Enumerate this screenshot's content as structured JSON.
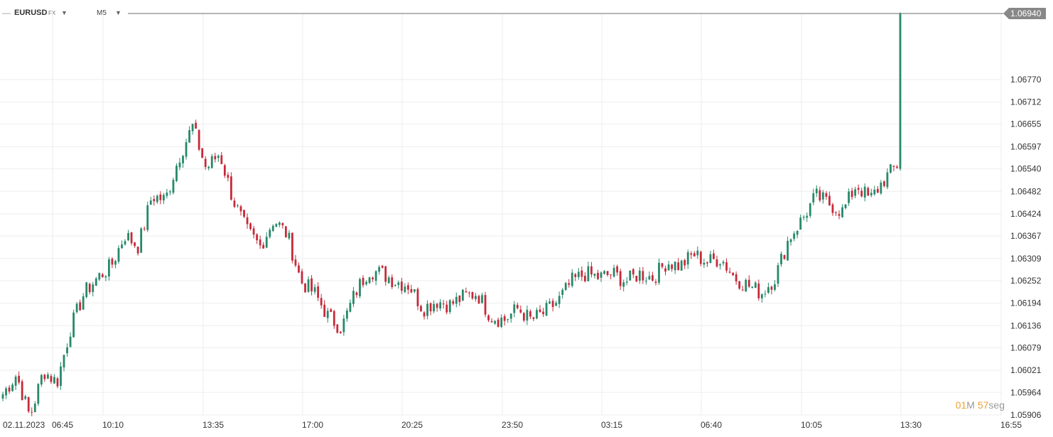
{
  "toolbar": {
    "dash": "—",
    "symbol": "EURUSD",
    "market": "FX",
    "symbol_caret": "▼",
    "timeframe": "M5",
    "timeframe_caret": "▼"
  },
  "timer": {
    "minutes": "01",
    "minutes_unit": "M",
    "seconds": "57",
    "seconds_unit": "seg"
  },
  "colors": {
    "up": "#26896a",
    "down": "#c62a3a",
    "grid": "#eeeeee",
    "price_tag": "#888888"
  },
  "chart_data": {
    "type": "candlestick",
    "symbol": "EURUSD",
    "timeframe": "M5",
    "ylim": [
      1.05906,
      1.0694
    ],
    "yticks": [
      "1.06770",
      "1.06712",
      "1.06655",
      "1.06597",
      "1.06540",
      "1.06482",
      "1.06424",
      "1.06367",
      "1.06309",
      "1.06252",
      "1.06194",
      "1.06136",
      "1.06079",
      "1.06021",
      "1.05964",
      "1.05906"
    ],
    "xticks": [
      "02.11.2023",
      "06:45",
      "10:10",
      "13:35",
      "17:00",
      "20:25",
      "23:50",
      "03:15",
      "06:40",
      "10:05",
      "13:30",
      "16:55"
    ],
    "last_price": "1.06940",
    "grid": true,
    "series": [
      {
        "time": "06:45",
        "close": 1.0596
      },
      {
        "time": "08:00",
        "close": 1.0601
      },
      {
        "time": "08:45",
        "close": 1.059
      },
      {
        "time": "09:30",
        "close": 1.0602
      },
      {
        "time": "10:00",
        "close": 1.0599
      },
      {
        "time": "10:10",
        "close": 1.0613
      },
      {
        "time": "10:40",
        "close": 1.0622
      },
      {
        "time": "11:20",
        "close": 1.0626
      },
      {
        "time": "11:50",
        "close": 1.0629
      },
      {
        "time": "12:20",
        "close": 1.0637
      },
      {
        "time": "12:40",
        "close": 1.0634
      },
      {
        "time": "13:00",
        "close": 1.0647
      },
      {
        "time": "13:15",
        "close": 1.0646
      },
      {
        "time": "13:35",
        "close": 1.0657
      },
      {
        "time": "14:00",
        "close": 1.0665
      },
      {
        "time": "14:20",
        "close": 1.0654
      },
      {
        "time": "14:45",
        "close": 1.0658
      },
      {
        "time": "15:00",
        "close": 1.0646
      },
      {
        "time": "15:25",
        "close": 1.0638
      },
      {
        "time": "15:45",
        "close": 1.0634
      },
      {
        "time": "16:05",
        "close": 1.0641
      },
      {
        "time": "16:20",
        "close": 1.0637
      },
      {
        "time": "16:40",
        "close": 1.0625
      },
      {
        "time": "17:00",
        "close": 1.0622
      },
      {
        "time": "17:20",
        "close": 1.0616
      },
      {
        "time": "17:40",
        "close": 1.0613
      },
      {
        "time": "18:10",
        "close": 1.0622
      },
      {
        "time": "18:40",
        "close": 1.0628
      },
      {
        "time": "19:10",
        "close": 1.0627
      },
      {
        "time": "19:30",
        "close": 1.0625
      },
      {
        "time": "20:00",
        "close": 1.0624
      },
      {
        "time": "20:25",
        "close": 1.0618
      },
      {
        "time": "21:00",
        "close": 1.062
      },
      {
        "time": "21:30",
        "close": 1.0619
      },
      {
        "time": "22:00",
        "close": 1.0621
      },
      {
        "time": "22:40",
        "close": 1.0622
      },
      {
        "time": "23:20",
        "close": 1.0616
      },
      {
        "time": "23:50",
        "close": 1.0615
      },
      {
        "time": "00:20",
        "close": 1.0618
      },
      {
        "time": "00:50",
        "close": 1.0615
      },
      {
        "time": "01:20",
        "close": 1.0617
      },
      {
        "time": "01:50",
        "close": 1.062
      },
      {
        "time": "02:30",
        "close": 1.0625
      },
      {
        "time": "03:15",
        "close": 1.0627
      },
      {
        "time": "03:40",
        "close": 1.0626
      },
      {
        "time": "04:00",
        "close": 1.0627
      },
      {
        "time": "04:30",
        "close": 1.0625
      },
      {
        "time": "05:00",
        "close": 1.0627
      },
      {
        "time": "05:30",
        "close": 1.0626
      },
      {
        "time": "06:00",
        "close": 1.063
      },
      {
        "time": "06:40",
        "close": 1.0629
      },
      {
        "time": "07:00",
        "close": 1.0632
      },
      {
        "time": "07:30",
        "close": 1.063
      },
      {
        "time": "08:00",
        "close": 1.0631
      },
      {
        "time": "08:30",
        "close": 1.0626
      },
      {
        "time": "09:00",
        "close": 1.0624
      },
      {
        "time": "09:30",
        "close": 1.0622
      },
      {
        "time": "10:05",
        "close": 1.0626
      },
      {
        "time": "10:20",
        "close": 1.0636
      },
      {
        "time": "10:40",
        "close": 1.0641
      },
      {
        "time": "11:00",
        "close": 1.0647
      },
      {
        "time": "11:30",
        "close": 1.0645
      },
      {
        "time": "12:00",
        "close": 1.0643
      },
      {
        "time": "12:20",
        "close": 1.065
      },
      {
        "time": "12:40",
        "close": 1.0646
      },
      {
        "time": "13:00",
        "close": 1.0651
      },
      {
        "time": "13:20",
        "close": 1.0655
      },
      {
        "time": "13:25",
        "close": 1.0694
      }
    ]
  }
}
